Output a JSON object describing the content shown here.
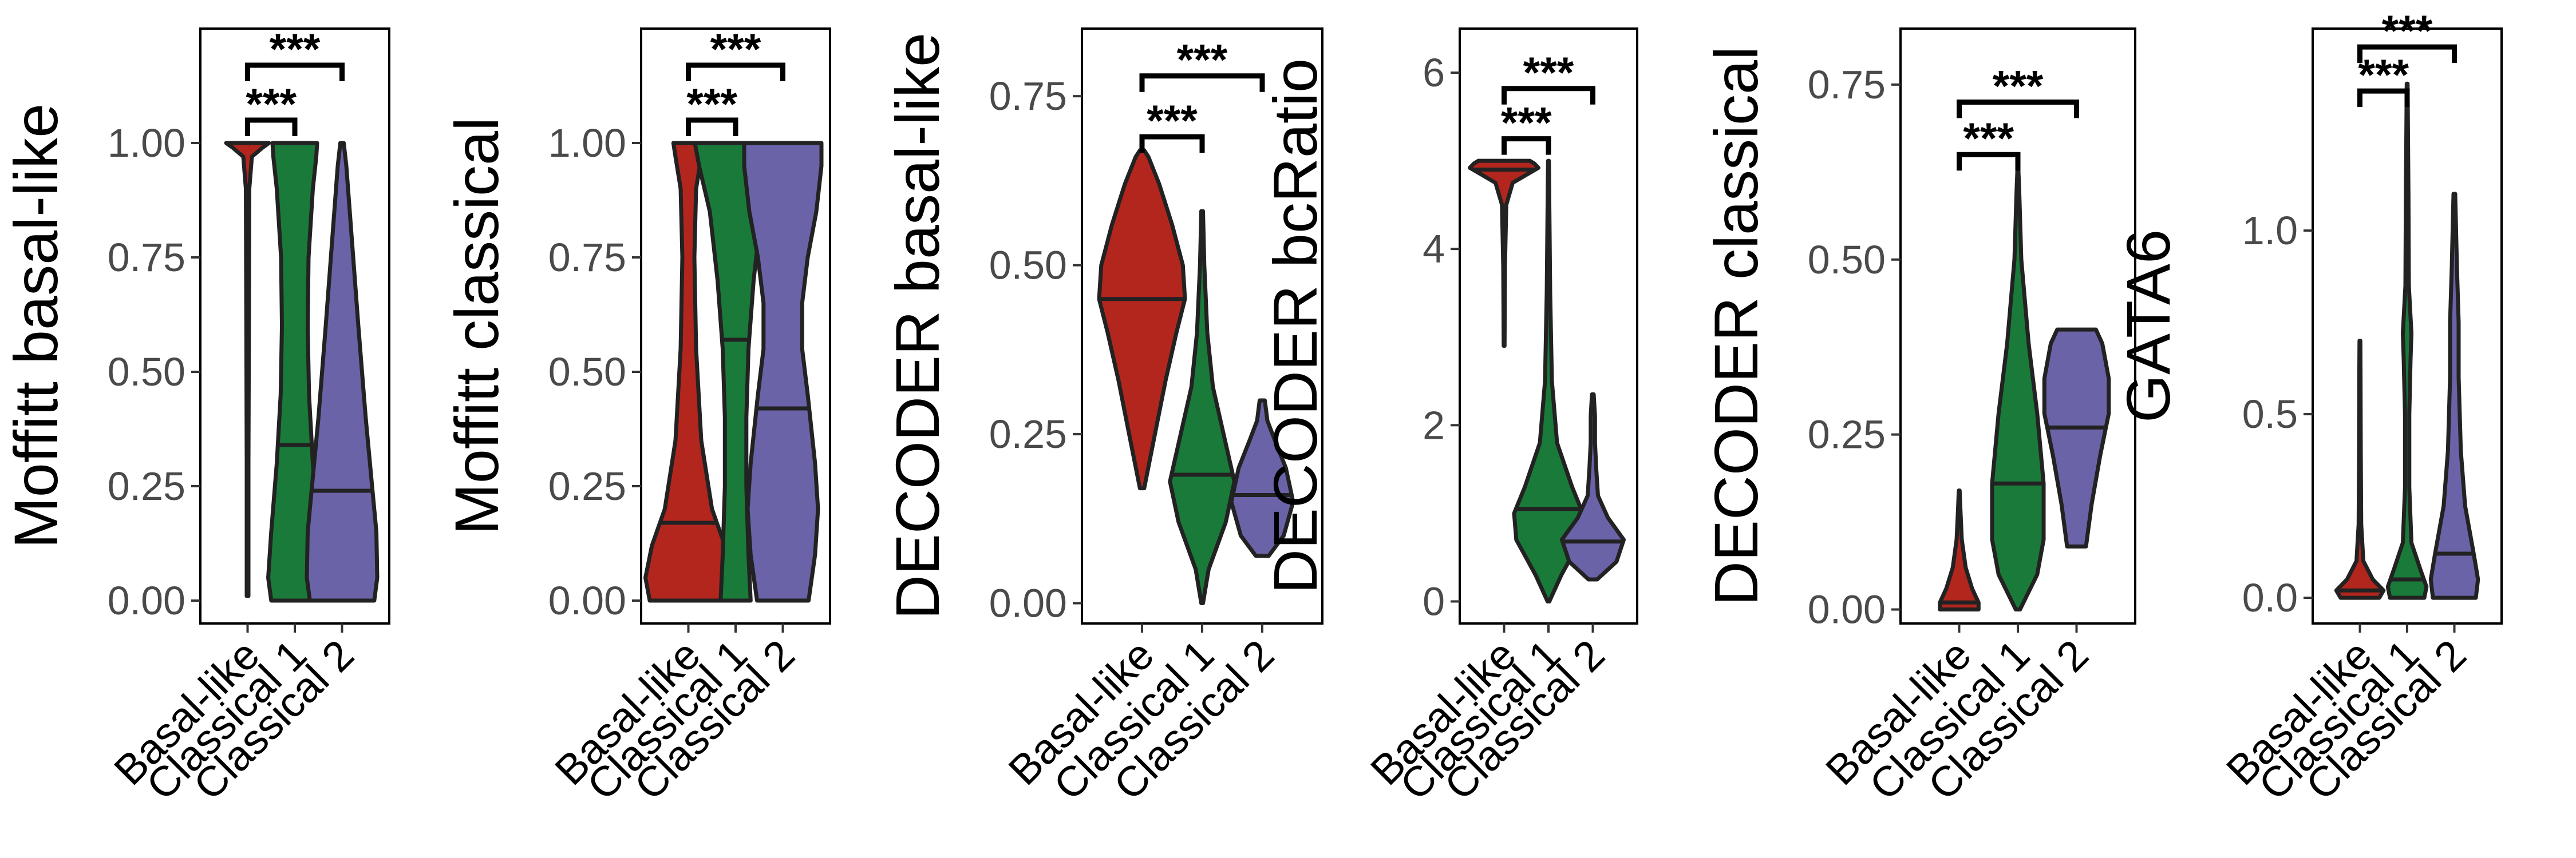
{
  "colors": {
    "Basal-like": "#b3261e",
    "Classical 1": "#1a7a3a",
    "Classical 2": "#6a63a8"
  },
  "chart_data": [
    {
      "type": "violin",
      "ylabel": "Moffitt basal-like",
      "categories": [
        "Basal-like",
        "Classical 1",
        "Classical 2"
      ],
      "ylim": [
        -0.05,
        1.25
      ],
      "yticks": [
        0.0,
        0.25,
        0.5,
        0.75,
        1.0
      ],
      "ytick_labels": [
        "0.00",
        "0.25",
        "0.50",
        "0.75",
        "1.00"
      ],
      "medians": [
        1.0,
        0.34,
        0.24
      ],
      "violins": [
        {
          "ymin": 0.01,
          "ymax": 1.0,
          "profile": [
            [
              0.01,
              0.02
            ],
            [
              0.3,
              0.02
            ],
            [
              0.6,
              0.03
            ],
            [
              0.9,
              0.04
            ],
            [
              0.97,
              0.1
            ],
            [
              0.99,
              0.35
            ],
            [
              1.0,
              0.5
            ]
          ]
        },
        {
          "ymin": 0.0,
          "ymax": 1.0,
          "profile": [
            [
              0.0,
              0.55
            ],
            [
              0.05,
              0.62
            ],
            [
              0.15,
              0.55
            ],
            [
              0.3,
              0.42
            ],
            [
              0.45,
              0.33
            ],
            [
              0.6,
              0.3
            ],
            [
              0.75,
              0.32
            ],
            [
              0.9,
              0.42
            ],
            [
              0.97,
              0.5
            ],
            [
              1.0,
              0.52
            ]
          ]
        },
        {
          "ymin": 0.0,
          "ymax": 1.0,
          "profile": [
            [
              0.0,
              0.75
            ],
            [
              0.05,
              0.82
            ],
            [
              0.15,
              0.8
            ],
            [
              0.25,
              0.7
            ],
            [
              0.4,
              0.55
            ],
            [
              0.6,
              0.38
            ],
            [
              0.8,
              0.22
            ],
            [
              0.95,
              0.1
            ],
            [
              1.0,
              0.04
            ]
          ]
        }
      ],
      "significance": [
        {
          "from": "Basal-like",
          "to": "Classical 1",
          "y": 1.05,
          "label": "***"
        },
        {
          "from": "Basal-like",
          "to": "Classical 2",
          "y": 1.17,
          "label": "***"
        }
      ]
    },
    {
      "type": "violin",
      "ylabel": "Moffitt classical",
      "categories": [
        "Basal-like",
        "Classical 1",
        "Classical 2"
      ],
      "ylim": [
        -0.05,
        1.25
      ],
      "yticks": [
        0.0,
        0.25,
        0.5,
        0.75,
        1.0
      ],
      "ytick_labels": [
        "0.00",
        "0.25",
        "0.50",
        "0.75",
        "1.00"
      ],
      "medians": [
        0.17,
        0.57,
        0.42
      ],
      "violins": [
        {
          "ymin": 0.0,
          "ymax": 1.0,
          "profile": [
            [
              0.0,
              0.9
            ],
            [
              0.05,
              1.0
            ],
            [
              0.12,
              0.85
            ],
            [
              0.2,
              0.55
            ],
            [
              0.35,
              0.3
            ],
            [
              0.55,
              0.18
            ],
            [
              0.75,
              0.14
            ],
            [
              0.9,
              0.18
            ],
            [
              0.97,
              0.3
            ],
            [
              1.0,
              0.35
            ]
          ]
        },
        {
          "ymin": 0.0,
          "ymax": 1.0,
          "profile": [
            [
              0.0,
              0.35
            ],
            [
              0.1,
              0.3
            ],
            [
              0.25,
              0.25
            ],
            [
              0.4,
              0.25
            ],
            [
              0.55,
              0.3
            ],
            [
              0.7,
              0.42
            ],
            [
              0.85,
              0.6
            ],
            [
              0.95,
              0.85
            ],
            [
              1.0,
              0.95
            ]
          ]
        },
        {
          "ymin": 0.0,
          "ymax": 1.0,
          "profile": [
            [
              0.0,
              0.6
            ],
            [
              0.1,
              0.75
            ],
            [
              0.2,
              0.82
            ],
            [
              0.3,
              0.75
            ],
            [
              0.45,
              0.58
            ],
            [
              0.55,
              0.45
            ],
            [
              0.65,
              0.45
            ],
            [
              0.75,
              0.58
            ],
            [
              0.85,
              0.78
            ],
            [
              0.95,
              0.9
            ],
            [
              1.0,
              0.9
            ]
          ]
        }
      ],
      "significance": [
        {
          "from": "Basal-like",
          "to": "Classical 1",
          "y": 1.05,
          "label": "***"
        },
        {
          "from": "Basal-like",
          "to": "Classical 2",
          "y": 1.17,
          "label": "***"
        }
      ]
    },
    {
      "type": "violin",
      "ylabel": "DECODER basal-like",
      "categories": [
        "Basal-like",
        "Classical 1",
        "Classical 2"
      ],
      "ylim": [
        -0.03,
        0.85
      ],
      "yticks": [
        0.0,
        0.25,
        0.5,
        0.75
      ],
      "ytick_labels": [
        "0.00",
        "0.25",
        "0.50",
        "0.75"
      ],
      "medians": [
        0.45,
        0.19,
        0.16
      ],
      "violins": [
        {
          "ymin": 0.17,
          "ymax": 0.67,
          "profile": [
            [
              0.17,
              0.05
            ],
            [
              0.25,
              0.3
            ],
            [
              0.33,
              0.55
            ],
            [
              0.4,
              0.8
            ],
            [
              0.45,
              1.0
            ],
            [
              0.5,
              0.95
            ],
            [
              0.56,
              0.7
            ],
            [
              0.62,
              0.4
            ],
            [
              0.66,
              0.15
            ],
            [
              0.67,
              0.05
            ]
          ]
        },
        {
          "ymin": 0.0,
          "ymax": 0.58,
          "profile": [
            [
              0.0,
              0.02
            ],
            [
              0.05,
              0.15
            ],
            [
              0.12,
              0.55
            ],
            [
              0.18,
              0.75
            ],
            [
              0.25,
              0.5
            ],
            [
              0.32,
              0.25
            ],
            [
              0.4,
              0.12
            ],
            [
              0.5,
              0.05
            ],
            [
              0.58,
              0.02
            ]
          ]
        },
        {
          "ymin": 0.07,
          "ymax": 0.3,
          "profile": [
            [
              0.07,
              0.15
            ],
            [
              0.1,
              0.5
            ],
            [
              0.15,
              0.72
            ],
            [
              0.2,
              0.55
            ],
            [
              0.24,
              0.3
            ],
            [
              0.27,
              0.12
            ],
            [
              0.3,
              0.06
            ]
          ]
        }
      ],
      "significance": [
        {
          "from": "Basal-like",
          "to": "Classical 1",
          "y": 0.69,
          "label": "***"
        },
        {
          "from": "Basal-like",
          "to": "Classical 2",
          "y": 0.78,
          "label": "***"
        }
      ]
    },
    {
      "type": "violin",
      "ylabel": "DECODER bcRatio",
      "categories": [
        "Basal-like",
        "Classical 1",
        "Classical 2"
      ],
      "ylim": [
        -0.25,
        6.5
      ],
      "yticks": [
        0,
        2,
        4,
        6
      ],
      "ytick_labels": [
        "0",
        "2",
        "4",
        "6"
      ],
      "medians": [
        4.9,
        1.05,
        0.68
      ],
      "violins": [
        {
          "ymin": 2.9,
          "ymax": 5.0,
          "profile": [
            [
              2.9,
              0.01
            ],
            [
              3.8,
              0.02
            ],
            [
              4.5,
              0.05
            ],
            [
              4.75,
              0.2
            ],
            [
              4.85,
              0.55
            ],
            [
              4.92,
              0.8
            ],
            [
              4.97,
              0.7
            ],
            [
              5.0,
              0.6
            ]
          ]
        },
        {
          "ymin": 0.0,
          "ymax": 5.0,
          "profile": [
            [
              0.0,
              0.02
            ],
            [
              0.3,
              0.3
            ],
            [
              0.7,
              0.75
            ],
            [
              1.0,
              0.8
            ],
            [
              1.3,
              0.55
            ],
            [
              1.8,
              0.2
            ],
            [
              2.5,
              0.08
            ],
            [
              3.5,
              0.04
            ],
            [
              4.5,
              0.02
            ],
            [
              5.0,
              0.01
            ]
          ]
        },
        {
          "ymin": 0.25,
          "ymax": 2.35,
          "profile": [
            [
              0.25,
              0.1
            ],
            [
              0.45,
              0.55
            ],
            [
              0.7,
              0.72
            ],
            [
              0.95,
              0.35
            ],
            [
              1.2,
              0.12
            ],
            [
              1.5,
              0.08
            ],
            [
              1.8,
              0.05
            ],
            [
              2.1,
              0.05
            ],
            [
              2.35,
              0.02
            ]
          ]
        }
      ],
      "significance": [
        {
          "from": "Basal-like",
          "to": "Classical 1",
          "y": 5.25,
          "label": "***"
        },
        {
          "from": "Basal-like",
          "to": "Classical 2",
          "y": 5.82,
          "label": "***"
        }
      ]
    },
    {
      "type": "violin",
      "ylabel": "DECODER classical",
      "categories": [
        "Basal-like",
        "Classical 1",
        "Classical 2"
      ],
      "ylim": [
        -0.02,
        0.83
      ],
      "yticks": [
        0.0,
        0.25,
        0.5,
        0.75
      ],
      "ytick_labels": [
        "0.00",
        "0.25",
        "0.50",
        "0.75"
      ],
      "medians": [
        0.01,
        0.18,
        0.26
      ],
      "violins": [
        {
          "ymin": 0.0,
          "ymax": 0.17,
          "profile": [
            [
              0.0,
              0.45
            ],
            [
              0.01,
              0.45
            ],
            [
              0.03,
              0.3
            ],
            [
              0.06,
              0.15
            ],
            [
              0.1,
              0.06
            ],
            [
              0.14,
              0.03
            ],
            [
              0.17,
              0.01
            ]
          ]
        },
        {
          "ymin": 0.0,
          "ymax": 0.63,
          "profile": [
            [
              0.0,
              0.05
            ],
            [
              0.05,
              0.45
            ],
            [
              0.1,
              0.6
            ],
            [
              0.18,
              0.6
            ],
            [
              0.28,
              0.45
            ],
            [
              0.38,
              0.25
            ],
            [
              0.5,
              0.08
            ],
            [
              0.6,
              0.03
            ],
            [
              0.63,
              0.01
            ]
          ]
        },
        {
          "ymin": 0.09,
          "ymax": 0.4,
          "profile": [
            [
              0.09,
              0.22
            ],
            [
              0.15,
              0.35
            ],
            [
              0.22,
              0.55
            ],
            [
              0.28,
              0.75
            ],
            [
              0.33,
              0.75
            ],
            [
              0.38,
              0.6
            ],
            [
              0.4,
              0.45
            ]
          ]
        }
      ],
      "significance": [
        {
          "from": "Basal-like",
          "to": "Classical 1",
          "y": 0.65,
          "label": "***"
        },
        {
          "from": "Basal-like",
          "to": "Classical 2",
          "y": 0.725,
          "label": "***"
        }
      ]
    },
    {
      "type": "violin",
      "ylabel": "GATA6",
      "categories": [
        "Basal-like",
        "Classical 1",
        "Classical 2"
      ],
      "ylim": [
        -0.07,
        1.55
      ],
      "yticks": [
        0.0,
        0.5,
        1.0
      ],
      "ytick_labels": [
        "0.0",
        "0.5",
        "1.0"
      ],
      "medians": [
        0.02,
        0.05,
        0.12
      ],
      "violins": [
        {
          "ymin": 0.0,
          "ymax": 0.7,
          "profile": [
            [
              0.0,
              0.45
            ],
            [
              0.02,
              0.55
            ],
            [
              0.05,
              0.3
            ],
            [
              0.1,
              0.08
            ],
            [
              0.2,
              0.03
            ],
            [
              0.4,
              0.02
            ],
            [
              0.6,
              0.015
            ],
            [
              0.7,
              0.01
            ]
          ]
        },
        {
          "ymin": 0.0,
          "ymax": 1.4,
          "profile": [
            [
              0.0,
              0.4
            ],
            [
              0.03,
              0.45
            ],
            [
              0.08,
              0.3
            ],
            [
              0.15,
              0.1
            ],
            [
              0.3,
              0.05
            ],
            [
              0.5,
              0.05
            ],
            [
              0.65,
              0.08
            ],
            [
              0.72,
              0.1
            ],
            [
              0.85,
              0.04
            ],
            [
              1.1,
              0.03
            ],
            [
              1.4,
              0.01
            ]
          ]
        },
        {
          "ymin": 0.0,
          "ymax": 1.1,
          "profile": [
            [
              0.0,
              0.5
            ],
            [
              0.05,
              0.55
            ],
            [
              0.12,
              0.45
            ],
            [
              0.25,
              0.25
            ],
            [
              0.4,
              0.15
            ],
            [
              0.6,
              0.1
            ],
            [
              0.75,
              0.1
            ],
            [
              0.9,
              0.06
            ],
            [
              1.1,
              0.02
            ]
          ]
        }
      ],
      "significance": [
        {
          "from": "Basal-like",
          "to": "Classical 1",
          "y": 1.38,
          "label": "***"
        },
        {
          "from": "Basal-like",
          "to": "Classical 2",
          "y": 1.5,
          "label": "***"
        }
      ]
    }
  ]
}
